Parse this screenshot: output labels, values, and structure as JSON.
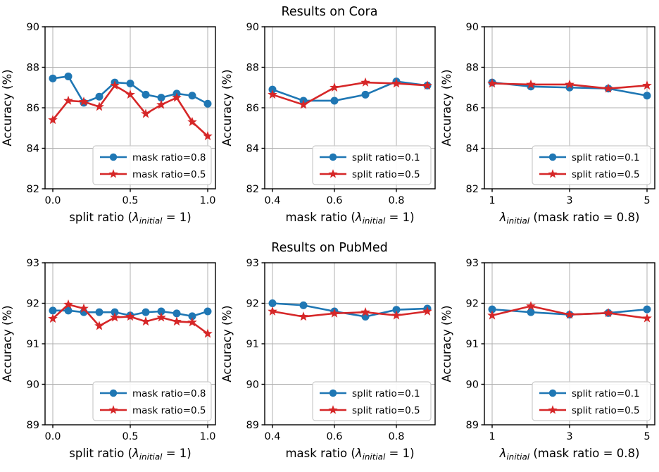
{
  "figure": {
    "row_titles": [
      "Results on Cora",
      "Results on PubMed"
    ],
    "background": "#ffffff",
    "grid_color": "#b0b0b0",
    "spine_color": "#000000",
    "legend_border_color": "#cccccc",
    "series_colors": {
      "blue": "#1f77b4",
      "red": "#d62728"
    }
  },
  "chart_data": [
    {
      "panel": "cora-vs-split-ratio",
      "type": "line",
      "xlabel": "split ratio (λ_{initial} = 1)",
      "ylabel": "Accuracy (%)",
      "xlim": [
        -0.05,
        1.05
      ],
      "ylim": [
        82,
        90
      ],
      "xticks": [
        0,
        0.5,
        1
      ],
      "xtick_labels": [
        "0.0",
        "0.5",
        "1.0"
      ],
      "yticks": [
        82,
        84,
        86,
        88,
        90
      ],
      "x": [
        0,
        0.1,
        0.2,
        0.3,
        0.4,
        0.5,
        0.6,
        0.7,
        0.8,
        0.9,
        1.0
      ],
      "series": [
        {
          "name": "mask ratio=0.8",
          "color": "#1f77b4",
          "marker": "circle",
          "values": [
            87.45,
            87.55,
            86.25,
            86.55,
            87.25,
            87.2,
            86.65,
            86.5,
            86.7,
            86.6,
            86.2
          ]
        },
        {
          "name": "mask ratio=0.5",
          "color": "#d62728",
          "marker": "star",
          "values": [
            85.4,
            86.35,
            86.3,
            86.05,
            87.1,
            86.65,
            85.7,
            86.15,
            86.5,
            85.3,
            84.6
          ]
        }
      ],
      "legend_position": "lower right",
      "grid": true
    },
    {
      "panel": "cora-vs-mask-ratio",
      "type": "line",
      "xlabel": "mask ratio (λ_{initial} = 1)",
      "ylabel": "Accuracy (%)",
      "xlim": [
        0.375,
        0.925
      ],
      "ylim": [
        82,
        90
      ],
      "xticks": [
        0.4,
        0.6,
        0.8
      ],
      "xtick_labels": [
        "0.4",
        "0.6",
        "0.8"
      ],
      "yticks": [
        82,
        84,
        86,
        88,
        90
      ],
      "x": [
        0.4,
        0.5,
        0.6,
        0.7,
        0.8,
        0.9
      ],
      "series": [
        {
          "name": "split ratio=0.1",
          "color": "#1f77b4",
          "marker": "circle",
          "values": [
            86.9,
            86.35,
            86.35,
            86.65,
            87.3,
            87.1
          ]
        },
        {
          "name": "split ratio=0.5",
          "color": "#d62728",
          "marker": "star",
          "values": [
            86.65,
            86.15,
            87.0,
            87.25,
            87.2,
            87.1
          ]
        }
      ],
      "legend_position": "lower right",
      "grid": true
    },
    {
      "panel": "cora-vs-lambda-initial",
      "type": "line",
      "xlabel": "λ_{initial} (mask ratio = 0.8)",
      "ylabel": "Accuracy (%)",
      "xlim": [
        0.8,
        5.2
      ],
      "ylim": [
        82,
        90
      ],
      "xticks": [
        1,
        3,
        5
      ],
      "xtick_labels": [
        "1",
        "3",
        "5"
      ],
      "yticks": [
        82,
        84,
        86,
        88,
        90
      ],
      "x": [
        1,
        2,
        3,
        4,
        5
      ],
      "series": [
        {
          "name": "split ratio=0.1",
          "color": "#1f77b4",
          "marker": "circle",
          "values": [
            87.25,
            87.05,
            87.0,
            86.95,
            86.6
          ]
        },
        {
          "name": "split ratio=0.5",
          "color": "#d62728",
          "marker": "star",
          "values": [
            87.2,
            87.15,
            87.15,
            86.95,
            87.1
          ]
        }
      ],
      "legend_position": "lower right",
      "grid": true
    },
    {
      "panel": "pubmed-vs-split-ratio",
      "type": "line",
      "xlabel": "split ratio (λ_{initial} = 1)",
      "ylabel": "Accuracy (%)",
      "xlim": [
        -0.05,
        1.05
      ],
      "ylim": [
        89,
        93
      ],
      "xticks": [
        0,
        0.5,
        1
      ],
      "xtick_labels": [
        "0.0",
        "0.5",
        "1.0"
      ],
      "yticks": [
        89,
        90,
        91,
        92,
        93
      ],
      "x": [
        0,
        0.1,
        0.2,
        0.3,
        0.4,
        0.5,
        0.6,
        0.7,
        0.8,
        0.9,
        1.0
      ],
      "series": [
        {
          "name": "mask ratio=0.8",
          "color": "#1f77b4",
          "marker": "circle",
          "values": [
            91.82,
            91.82,
            91.78,
            91.78,
            91.78,
            91.7,
            91.78,
            91.8,
            91.75,
            91.68,
            91.8
          ]
        },
        {
          "name": "mask ratio=0.5",
          "color": "#d62728",
          "marker": "star",
          "values": [
            91.62,
            91.97,
            91.87,
            91.44,
            91.65,
            91.67,
            91.55,
            91.65,
            91.55,
            91.53,
            91.25
          ]
        }
      ],
      "legend_position": "lower right",
      "grid": true
    },
    {
      "panel": "pubmed-vs-mask-ratio",
      "type": "line",
      "xlabel": "mask ratio (λ_{initial} = 1)",
      "ylabel": "Accuracy (%)",
      "xlim": [
        0.375,
        0.925
      ],
      "ylim": [
        89,
        93
      ],
      "xticks": [
        0.4,
        0.6,
        0.8
      ],
      "xtick_labels": [
        "0.4",
        "0.6",
        "0.8"
      ],
      "yticks": [
        89,
        90,
        91,
        92,
        93
      ],
      "x": [
        0.4,
        0.5,
        0.6,
        0.7,
        0.8,
        0.9
      ],
      "series": [
        {
          "name": "split ratio=0.1",
          "color": "#1f77b4",
          "marker": "circle",
          "values": [
            92.0,
            91.95,
            91.8,
            91.67,
            91.84,
            91.87
          ]
        },
        {
          "name": "split ratio=0.5",
          "color": "#d62728",
          "marker": "star",
          "values": [
            91.8,
            91.67,
            91.75,
            91.78,
            91.7,
            91.8
          ]
        }
      ],
      "legend_position": "lower right",
      "grid": true
    },
    {
      "panel": "pubmed-vs-lambda-initial",
      "type": "line",
      "xlabel": "λ_{initial} (mask ratio = 0.8)",
      "ylabel": "Accuracy (%)",
      "xlim": [
        0.8,
        5.2
      ],
      "ylim": [
        89,
        93
      ],
      "xticks": [
        1,
        3,
        5
      ],
      "xtick_labels": [
        "1",
        "3",
        "5"
      ],
      "yticks": [
        89,
        90,
        91,
        92,
        93
      ],
      "x": [
        1,
        2,
        3,
        4,
        5
      ],
      "series": [
        {
          "name": "split ratio=0.1",
          "color": "#1f77b4",
          "marker": "circle",
          "values": [
            91.85,
            91.78,
            91.72,
            91.76,
            91.85
          ]
        },
        {
          "name": "split ratio=0.5",
          "color": "#d62728",
          "marker": "star",
          "values": [
            91.7,
            91.93,
            91.72,
            91.76,
            91.63
          ]
        }
      ],
      "legend_position": "lower right",
      "grid": true
    }
  ]
}
